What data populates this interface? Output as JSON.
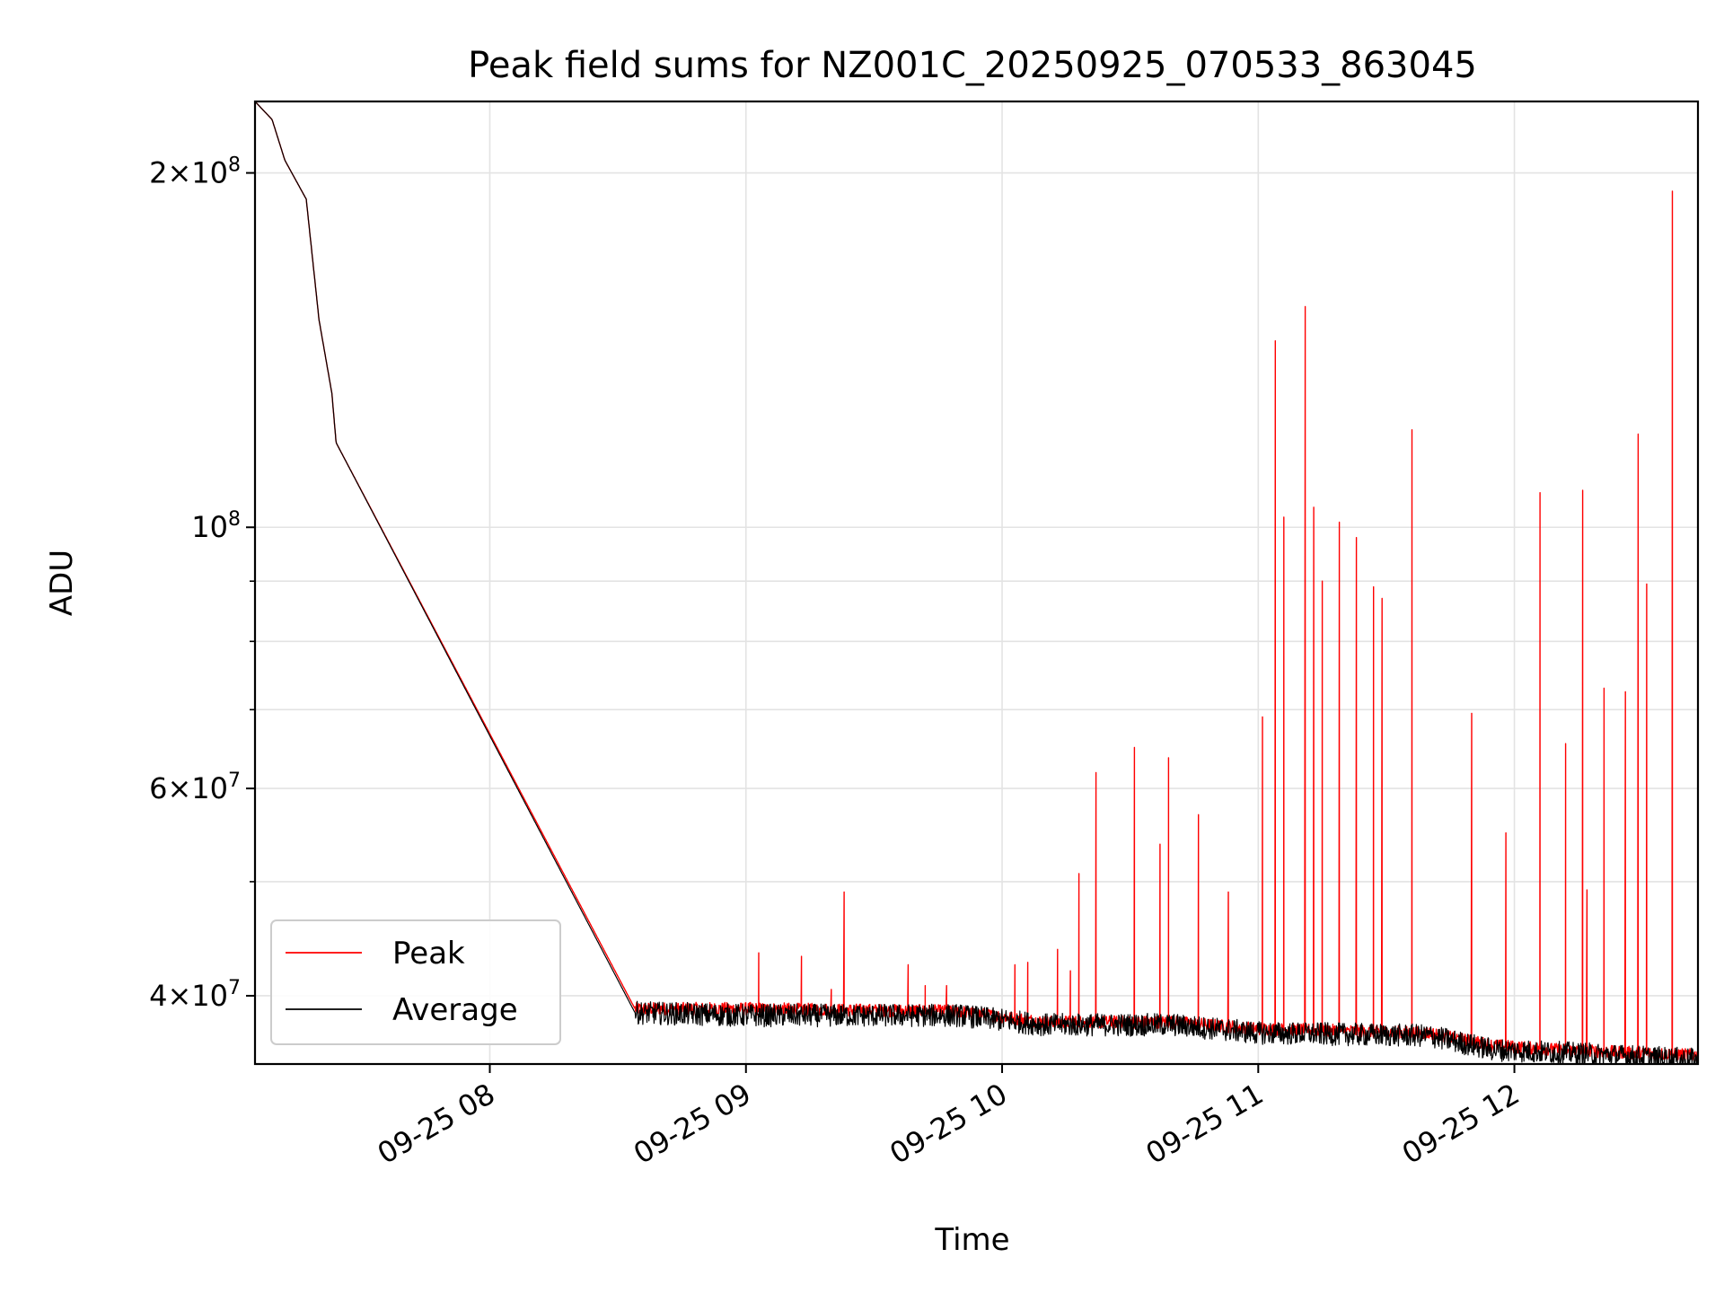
{
  "chart_data": {
    "type": "line",
    "title": "Peak field sums for NZ001C_20250925_070533_863045",
    "xlabel": "Time",
    "ylabel": "ADU",
    "yscale": "log",
    "grid": true,
    "legend_position": "lower-left",
    "x_ticks": [
      "09-25 08",
      "09-25 09",
      "09-25 10",
      "09-25 11",
      "09-25 12"
    ],
    "x_tick_values": [
      "2025-09-25 08:00",
      "2025-09-25 09:00",
      "2025-09-25 10:00",
      "2025-09-25 11:00",
      "2025-09-25 12:00"
    ],
    "xlim": [
      "2025-09-25 07:05",
      "2025-09-25 12:43"
    ],
    "ylim": [
      35000000,
      230000000
    ],
    "y_ticks": [
      {
        "value": 40000000,
        "base": "4",
        "exp": "7"
      },
      {
        "value": 60000000,
        "base": "6",
        "exp": "7"
      },
      {
        "value": 100000000,
        "base": "",
        "exp": "8"
      },
      {
        "value": 200000000,
        "base": "2",
        "exp": "8"
      }
    ],
    "y_minor_ticks": [
      50000000,
      70000000,
      80000000,
      90000000
    ],
    "series": [
      {
        "name": "Peak",
        "color": "#ff0000",
        "baseline": [
          [
            "2025-09-25 07:05",
            230000000
          ],
          [
            "2025-09-25 07:09",
            222000000
          ],
          [
            "2025-09-25 07:12",
            205000000
          ],
          [
            "2025-09-25 07:17",
            190000000
          ],
          [
            "2025-09-25 07:20",
            150000000
          ],
          [
            "2025-09-25 07:23",
            130000000
          ],
          [
            "2025-09-25 07:24",
            118000000
          ],
          [
            "2025-09-25 08:34",
            39000000
          ],
          [
            "2025-09-25 09:00",
            39000000
          ],
          [
            "2025-09-25 09:50",
            38800000
          ],
          [
            "2025-09-25 10:10",
            38000000
          ],
          [
            "2025-09-25 10:40",
            38000000
          ],
          [
            "2025-09-25 11:00",
            37500000
          ],
          [
            "2025-09-25 11:40",
            37200000
          ],
          [
            "2025-09-25 11:55",
            36300000
          ],
          [
            "2025-09-25 12:10",
            36000000
          ],
          [
            "2025-09-25 12:43",
            35600000
          ]
        ],
        "spikes": [
          [
            "2025-09-25 09:03",
            43500000
          ],
          [
            "2025-09-25 09:13",
            43200000
          ],
          [
            "2025-09-25 09:20",
            40500000
          ],
          [
            "2025-09-25 09:23",
            49000000
          ],
          [
            "2025-09-25 09:38",
            42500000
          ],
          [
            "2025-09-25 09:42",
            40800000
          ],
          [
            "2025-09-25 09:47",
            40800000
          ],
          [
            "2025-09-25 10:03",
            42500000
          ],
          [
            "2025-09-25 10:06",
            42700000
          ],
          [
            "2025-09-25 10:13",
            43800000
          ],
          [
            "2025-09-25 10:16",
            42000000
          ],
          [
            "2025-09-25 10:18",
            50800000
          ],
          [
            "2025-09-25 10:22",
            61900000
          ],
          [
            "2025-09-25 10:31",
            65000000
          ],
          [
            "2025-09-25 10:37",
            53800000
          ],
          [
            "2025-09-25 10:39",
            63700000
          ],
          [
            "2025-09-25 10:46",
            57000000
          ],
          [
            "2025-09-25 10:53",
            49000000
          ],
          [
            "2025-09-25 11:01",
            69000000
          ],
          [
            "2025-09-25 11:04",
            144000000
          ],
          [
            "2025-09-25 11:06",
            102000000
          ],
          [
            "2025-09-25 11:11",
            154000000
          ],
          [
            "2025-09-25 11:13",
            104000000
          ],
          [
            "2025-09-25 11:15",
            90000000
          ],
          [
            "2025-09-25 11:19",
            101000000
          ],
          [
            "2025-09-25 11:23",
            98000000
          ],
          [
            "2025-09-25 11:27",
            89000000
          ],
          [
            "2025-09-25 11:29",
            87000000
          ],
          [
            "2025-09-25 11:36",
            121000000
          ],
          [
            "2025-09-25 11:50",
            69500000
          ],
          [
            "2025-09-25 11:58",
            55000000
          ],
          [
            "2025-09-25 12:06",
            107000000
          ],
          [
            "2025-09-25 12:12",
            65500000
          ],
          [
            "2025-09-25 12:16",
            107500000
          ],
          [
            "2025-09-25 12:17",
            49200000
          ],
          [
            "2025-09-25 12:21",
            73000000
          ],
          [
            "2025-09-25 12:26",
            72500000
          ],
          [
            "2025-09-25 12:29",
            120000000
          ],
          [
            "2025-09-25 12:31",
            89500000
          ],
          [
            "2025-09-25 12:37",
            193000000
          ]
        ]
      },
      {
        "name": "Average",
        "color": "#000000",
        "baseline": [
          [
            "2025-09-25 07:05",
            230000000
          ],
          [
            "2025-09-25 07:09",
            222000000
          ],
          [
            "2025-09-25 07:12",
            205000000
          ],
          [
            "2025-09-25 07:17",
            190000000
          ],
          [
            "2025-09-25 07:20",
            150000000
          ],
          [
            "2025-09-25 07:23",
            130000000
          ],
          [
            "2025-09-25 07:24",
            118000000
          ],
          [
            "2025-09-25 08:34",
            38700000
          ],
          [
            "2025-09-25 09:00",
            38500000
          ],
          [
            "2025-09-25 09:50",
            38500000
          ],
          [
            "2025-09-25 10:10",
            37800000
          ],
          [
            "2025-09-25 10:40",
            37800000
          ],
          [
            "2025-09-25 11:00",
            37200000
          ],
          [
            "2025-09-25 11:40",
            37000000
          ],
          [
            "2025-09-25 11:55",
            36000000
          ],
          [
            "2025-09-25 12:10",
            35800000
          ],
          [
            "2025-09-25 12:43",
            35300000
          ]
        ]
      }
    ]
  }
}
